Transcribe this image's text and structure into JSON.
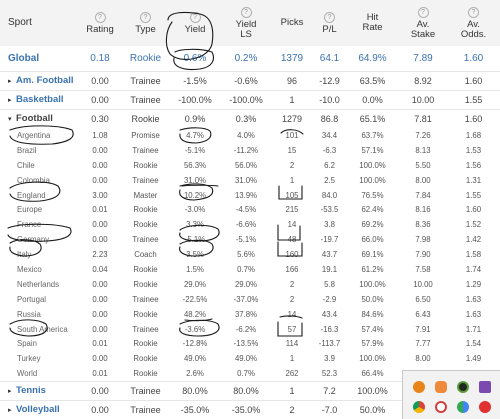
{
  "columns": {
    "sport": "Sport",
    "rating": "Rating",
    "type": "Type",
    "yield": "Yield",
    "yield_ls_1": "Yield",
    "yield_ls_2": "LS",
    "picks": "Picks",
    "pl": "P/L",
    "hit_rate_1": "Hit",
    "hit_rate_2": "Rate",
    "av_stake_1": "Av.",
    "av_stake_2": "Stake",
    "av_odds_1": "Av.",
    "av_odds_2": "Odds.",
    "help_glyph": "?"
  },
  "rows": [
    {
      "kind": "global",
      "sport": "Global",
      "rating": "0.18",
      "type": "Rookie",
      "yield": "0.6%",
      "yield_ls": "0.2%",
      "picks": "1379",
      "pl": "64.1",
      "hit_rate": "64.9%",
      "av_stake": "7.89",
      "av_odds": "1.60"
    },
    {
      "kind": "group",
      "collapsed": true,
      "caret": "▸",
      "sport": "Am. Football",
      "rating": "0.00",
      "type": "Trainee",
      "yield": "-1.5%",
      "yield_ls": "-0.6%",
      "picks": "96",
      "pl": "-12.9",
      "hit_rate": "63.5%",
      "av_stake": "8.92",
      "av_odds": "1.60"
    },
    {
      "kind": "group",
      "collapsed": true,
      "caret": "▸",
      "sport": "Basketball",
      "rating": "0.00",
      "type": "Trainee",
      "yield": "-100.0%",
      "yield_ls": "-100.0%",
      "picks": "1",
      "pl": "-10.0",
      "hit_rate": "0.0%",
      "av_stake": "10.00",
      "av_odds": "1.55"
    },
    {
      "kind": "group",
      "collapsed": false,
      "caret": "▾",
      "sport": "Football",
      "rating": "0.30",
      "type": "Rookie",
      "yield": "0.9%",
      "yield_ls": "0.3%",
      "picks": "1279",
      "pl": "86.8",
      "hit_rate": "65.1%",
      "av_stake": "7.81",
      "av_odds": "1.60"
    },
    {
      "kind": "sub",
      "sport": "Argentina",
      "rating": "1.08",
      "type": "Promise",
      "yield": "4.7%",
      "yield_ls": "4.0%",
      "picks": "101",
      "pl": "34.4",
      "hit_rate": "63.7%",
      "av_stake": "7.26",
      "av_odds": "1.68"
    },
    {
      "kind": "sub",
      "sport": "Brazil",
      "rating": "0.00",
      "type": "Trainee",
      "yield": "-5.1%",
      "yield_ls": "-11.2%",
      "picks": "15",
      "pl": "-6.3",
      "hit_rate": "57.1%",
      "av_stake": "8.13",
      "av_odds": "1.53"
    },
    {
      "kind": "sub",
      "sport": "Chile",
      "rating": "0.00",
      "type": "Rookie",
      "yield": "56.3%",
      "yield_ls": "56.0%",
      "picks": "2",
      "pl": "6.2",
      "hit_rate": "100.0%",
      "av_stake": "5.50",
      "av_odds": "1.56"
    },
    {
      "kind": "sub",
      "sport": "Colombia",
      "rating": "0.00",
      "type": "Trainee",
      "yield": "31.0%",
      "yield_ls": "31.0%",
      "picks": "1",
      "pl": "2.5",
      "hit_rate": "100.0%",
      "av_stake": "8.00",
      "av_odds": "1.31"
    },
    {
      "kind": "sub",
      "sport": "England",
      "rating": "3.00",
      "type": "Master",
      "yield": "10.2%",
      "yield_ls": "13.9%",
      "picks": "105",
      "pl": "84.0",
      "hit_rate": "76.5%",
      "av_stake": "7.84",
      "av_odds": "1.55"
    },
    {
      "kind": "sub",
      "sport": "Europe",
      "rating": "0.01",
      "type": "Rookie",
      "yield": "-3.0%",
      "yield_ls": "-4.5%",
      "picks": "215",
      "pl": "-53.5",
      "hit_rate": "62.4%",
      "av_stake": "8.16",
      "av_odds": "1.60"
    },
    {
      "kind": "sub",
      "sport": "France",
      "rating": "0.00",
      "type": "Rookie",
      "yield": "3.3%",
      "yield_ls": "-6.6%",
      "picks": "14",
      "pl": "3.8",
      "hit_rate": "69.2%",
      "av_stake": "8.36",
      "av_odds": "1.52"
    },
    {
      "kind": "sub",
      "sport": "Germany",
      "rating": "0.00",
      "type": "Trainee",
      "yield": "-5.1%",
      "yield_ls": "-5.1%",
      "picks": "48",
      "pl": "-19.7",
      "hit_rate": "66.0%",
      "av_stake": "7.98",
      "av_odds": "1.42"
    },
    {
      "kind": "sub",
      "sport": "Italy",
      "rating": "2.23",
      "type": "Coach",
      "yield": "3.5%",
      "yield_ls": "5.6%",
      "picks": "160",
      "pl": "43.7",
      "hit_rate": "69.1%",
      "av_stake": "7.90",
      "av_odds": "1.58"
    },
    {
      "kind": "sub",
      "sport": "Mexico",
      "rating": "0.04",
      "type": "Rookie",
      "yield": "1.5%",
      "yield_ls": "0.7%",
      "picks": "166",
      "pl": "19.1",
      "hit_rate": "61.2%",
      "av_stake": "7.58",
      "av_odds": "1.74"
    },
    {
      "kind": "sub",
      "sport": "Netherlands",
      "rating": "0.00",
      "type": "Rookie",
      "yield": "29.0%",
      "yield_ls": "29.0%",
      "picks": "2",
      "pl": "5.8",
      "hit_rate": "100.0%",
      "av_stake": "10.00",
      "av_odds": "1.29"
    },
    {
      "kind": "sub",
      "sport": "Portugal",
      "rating": "0.00",
      "type": "Trainee",
      "yield": "-22.5%",
      "yield_ls": "-37.0%",
      "picks": "2",
      "pl": "-2.9",
      "hit_rate": "50.0%",
      "av_stake": "6.50",
      "av_odds": "1.63"
    },
    {
      "kind": "sub",
      "sport": "Russia",
      "rating": "0.00",
      "type": "Rookie",
      "yield": "48.2%",
      "yield_ls": "37.8%",
      "picks": "14",
      "pl": "43.4",
      "hit_rate": "84.6%",
      "av_stake": "6.43",
      "av_odds": "1.63"
    },
    {
      "kind": "sub",
      "sport": "South America",
      "rating": "0.00",
      "type": "Trainee",
      "yield": "-3.6%",
      "yield_ls": "-6.2%",
      "picks": "57",
      "pl": "-16.3",
      "hit_rate": "57.4%",
      "av_stake": "7.91",
      "av_odds": "1.71"
    },
    {
      "kind": "sub",
      "sport": "Spain",
      "rating": "0.01",
      "type": "Rookie",
      "yield": "-12.8%",
      "yield_ls": "-13.5%",
      "picks": "114",
      "pl": "-113.7",
      "hit_rate": "57.9%",
      "av_stake": "7.77",
      "av_odds": "1.54"
    },
    {
      "kind": "sub",
      "sport": "Turkey",
      "rating": "0.00",
      "type": "Rookie",
      "yield": "49.0%",
      "yield_ls": "49.0%",
      "picks": "1",
      "pl": "3.9",
      "hit_rate": "100.0%",
      "av_stake": "8.00",
      "av_odds": "1.49"
    },
    {
      "kind": "sub",
      "sport": "World",
      "rating": "0.01",
      "type": "Rookie",
      "yield": "2.6%",
      "yield_ls": "0.7%",
      "picks": "262",
      "pl": "52.3",
      "hit_rate": "66.4%",
      "av_stake": "7.82",
      "av_odds": "1.55"
    },
    {
      "kind": "group",
      "collapsed": true,
      "caret": "▸",
      "sport": "Tennis",
      "rating": "0.00",
      "type": "Trainee",
      "yield": "80.0%",
      "yield_ls": "80.0%",
      "picks": "1",
      "pl": "7.2",
      "hit_rate": "100.0%",
      "av_stake": "",
      "av_odds": ""
    },
    {
      "kind": "group",
      "collapsed": true,
      "caret": "▸",
      "sport": "Volleyball",
      "rating": "0.00",
      "type": "Trainee",
      "yield": "-35.0%",
      "yield_ls": "-35.0%",
      "picks": "2",
      "pl": "-7.0",
      "hit_rate": "50.0%",
      "av_stake": "",
      "av_odds": ""
    }
  ],
  "colors": {
    "link_blue": "#3b73b0",
    "header_bg": "#f3f3f3",
    "ink": "#1a1a1a"
  },
  "tray_icons": [
    "orange-app-icon",
    "cloud-icon",
    "shield-icon",
    "pen-icon",
    "chrome-icon",
    "clock-icon",
    "chrome-alt-icon",
    "yandex-icon"
  ]
}
